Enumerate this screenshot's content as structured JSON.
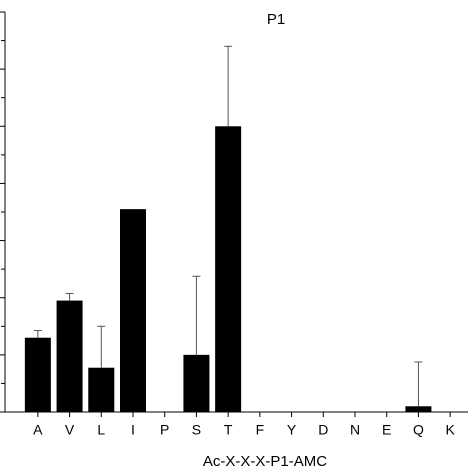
{
  "chart_data": {
    "type": "bar",
    "title": "P1",
    "x_label": "Ac-X-X-X-P1-AMC",
    "categories": [
      "A",
      "V",
      "L",
      "I",
      "P",
      "S",
      "T",
      "F",
      "Y",
      "D",
      "N",
      "E",
      "Q",
      "K"
    ],
    "values": [
      2.6,
      3.9,
      1.55,
      7.1,
      0,
      2.0,
      10.0,
      0,
      0,
      0,
      0,
      0,
      0.2,
      0
    ],
    "errors": [
      0.25,
      0.25,
      1.45,
      0,
      0,
      2.75,
      2.8,
      0,
      0,
      0,
      0,
      0,
      1.55,
      0
    ],
    "color": "#000000",
    "ylim": [
      0,
      14
    ],
    "yticks": [
      0,
      1,
      2,
      3,
      4,
      5,
      6,
      7,
      8,
      9,
      10,
      11,
      12,
      13,
      14
    ]
  }
}
